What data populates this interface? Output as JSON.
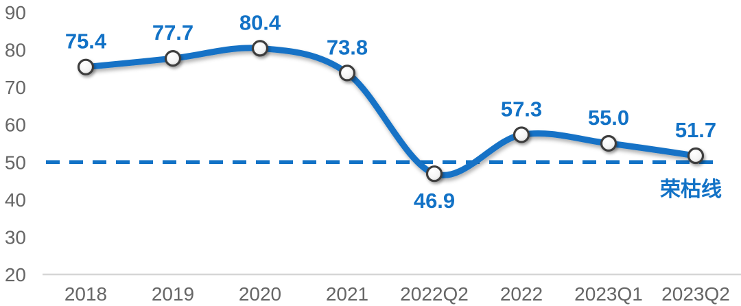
{
  "chart_data": {
    "type": "line",
    "title": "",
    "xlabel": "",
    "ylabel": "",
    "categories": [
      "2018",
      "2019",
      "2020",
      "2021",
      "2022Q2",
      "2022",
      "2023Q1",
      "2023Q2"
    ],
    "values": [
      75.4,
      77.7,
      80.4,
      73.8,
      46.9,
      57.3,
      55.0,
      51.7
    ],
    "data_labels": [
      "75.4",
      "77.7",
      "80.4",
      "73.8",
      "46.9",
      "57.3",
      "55.0",
      "51.7"
    ],
    "label_placement": [
      "above",
      "above",
      "above",
      "above",
      "below",
      "above",
      "above",
      "above"
    ],
    "y_ticks": [
      20,
      30,
      40,
      50,
      60,
      70,
      80,
      90
    ],
    "ylim": [
      20,
      90
    ],
    "grid": "off",
    "legend": "none",
    "line_style": "smooth",
    "marker": "circle-white",
    "reference_line": {
      "value": 50,
      "label": "荣枯线",
      "style": "dashed"
    },
    "colors": {
      "line": "#1272C6",
      "reference": "#1272C6",
      "data_label": "#1272C6",
      "axis_text": "#666666",
      "axis_line": "#D6D6D6",
      "marker_fill": "#FFFFFF",
      "marker_stroke": "#3D3D3D"
    }
  }
}
